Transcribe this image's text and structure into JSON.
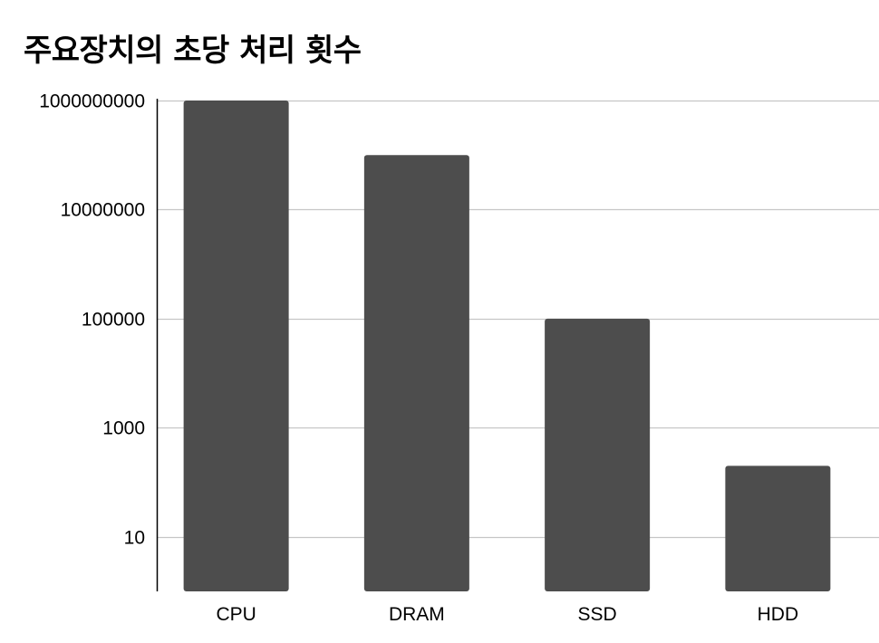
{
  "chart_data": {
    "type": "bar",
    "title": "주요장치의 초당 처리 횟수",
    "xlabel": "",
    "ylabel": "",
    "yscale": "log",
    "ylim": [
      1,
      1000000000
    ],
    "grid": true,
    "legend": "none",
    "categories": [
      "CPU",
      "DRAM",
      "SSD",
      "HDD"
    ],
    "values": [
      1000000000,
      100000000,
      100000,
      200
    ],
    "y_ticks": [
      10,
      1000,
      100000,
      10000000,
      1000000000
    ],
    "y_tick_labels": [
      "10",
      "1000",
      "100000",
      "10000000",
      "1000000000"
    ],
    "colors": {
      "bar": "#4d4d4d",
      "grid": "#c6c6c6",
      "axis": "#000000"
    }
  }
}
